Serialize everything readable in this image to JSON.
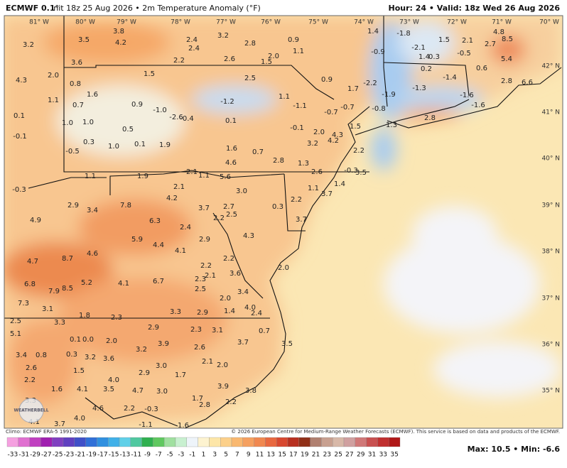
{
  "header": {
    "model": "ECMWF 0.1°",
    "title": "Init 18z 25 Aug 2026 • 2m Temperature Anomaly (°F)",
    "valid": "Hour: 24 • Valid: 18z Wed 26 Aug 2026"
  },
  "map": {
    "lon_labels": [
      "81° W",
      "80° W",
      "79° W",
      "78° W",
      "77° W",
      "76° W",
      "75° W",
      "74° W",
      "73° W",
      "72° W",
      "71° W",
      "70° W"
    ],
    "lat_labels": [
      "42° N",
      "41° N",
      "40° N",
      "39° N",
      "38° N",
      "37° N",
      "36° N",
      "35° N"
    ],
    "values": [
      "3.8",
      "3.5",
      "4.2",
      "3.2",
      "3.6",
      "2.4",
      "2.4",
      "3.2",
      "2.8",
      "0.9",
      "1.4",
      "-1.8",
      "1.5",
      "2.1",
      "2.7",
      "4.8",
      "8.5",
      "1.1",
      "-0.9",
      "-2.1",
      "1.4",
      "0.3",
      "-0.5",
      "5.4",
      "2.0",
      "1.5",
      "2.6",
      "2.2",
      "1.5",
      "2.0",
      "4.3",
      "0.8",
      "2.5",
      "0.9",
      "1.7",
      "-2.2",
      "0.2",
      "-1.4",
      "0.6",
      "1.6",
      "1.1",
      "0.7",
      "0.9",
      "-1.2",
      "1.1",
      "-1.9",
      "-1.3",
      "-1.6",
      "2.8",
      "6.6",
      "-1.1",
      "-0.7",
      "-0.7",
      "-0.8",
      "-1.6",
      "-1.0",
      "-2.6",
      "-0.4",
      "0.1",
      "1.0",
      "1.0",
      "0.1",
      "2.8",
      "1.3",
      "1.5",
      "0.5",
      "-0.1",
      "2.0",
      "4.3",
      "4.2",
      "-0.1",
      "0.3",
      "1.0",
      "0.1",
      "1.9",
      "1.6",
      "0.7",
      "3.2",
      "2.2",
      "-0.5",
      "2.8",
      "4.6",
      "1.3",
      "2.6",
      "-0.3",
      "3.5",
      "1.1",
      "1.9",
      "2.1",
      "1.1",
      "5.6",
      "-0.3",
      "2.1",
      "1.4",
      "1.1",
      "3.7",
      "3.0",
      "4.2",
      "2.2",
      "2.9",
      "3.4",
      "7.8",
      "3.7",
      "2.7",
      "0.3",
      "2.5",
      "2.2",
      "4.9",
      "6.3",
      "2.4",
      "3.7",
      "4.3",
      "5.9",
      "2.9",
      "4.4",
      "4.6",
      "4.1",
      "8.7",
      "4.7",
      "2.2",
      "2.2",
      "3.6",
      "2.1",
      "2.0",
      "6.8",
      "7.9",
      "8.5",
      "5.2",
      "4.1",
      "6.7",
      "2.3",
      "2.5",
      "2.0",
      "3.4",
      "7.3",
      "3.1",
      "1.8",
      "2.3",
      "3.3",
      "2.9",
      "1.4",
      "4.0",
      "2.4",
      "2.5",
      "3.3",
      "2.9",
      "2.3",
      "3.1",
      "0.7",
      "5.1",
      "0.1",
      "0.0",
      "2.0",
      "3.9",
      "3.7",
      "3.5",
      "3.2",
      "2.6",
      "3.4",
      "0.8",
      "0.3",
      "3.2",
      "3.6",
      "2.1",
      "2.0",
      "1.5",
      "3.0",
      "2.9",
      "1.7",
      "4.0",
      "3.9",
      "2.6",
      "2.2",
      "3.5",
      "4.7",
      "3.0",
      "3.8",
      "1.6",
      "4.1",
      "3.3",
      "1.7",
      "2.8",
      "2.2",
      "4.6",
      "2.2",
      "-0.3",
      "4.0",
      "4.1",
      "3.7",
      "-1.1",
      "1.6"
    ],
    "logo": "WEATHERBELL"
  },
  "footer": {
    "climo": "Climo: ECMWF ERA-5 1991-2020",
    "credit": "© 2026 European Centre for Medium-Range Weather Forecasts (ECMWF). This service is based on data and products of the ECMWF.",
    "extremes": "Max: 10.5 • Min: -6.6"
  },
  "colorbar": {
    "labels": [
      -33,
      -31,
      -29,
      -27,
      -25,
      -23,
      -21,
      -19,
      -17,
      -15,
      -13,
      -11,
      -9,
      -7,
      -5,
      -3,
      -1,
      1,
      3,
      5,
      7,
      9,
      11,
      13,
      15,
      17,
      19,
      21,
      23,
      25,
      27,
      29,
      31,
      33,
      35
    ],
    "colors": [
      "#f5a0e0",
      "#e070d0",
      "#c040c0",
      "#a020b0",
      "#8040c0",
      "#6040c0",
      "#4050c8",
      "#3070d8",
      "#3090e0",
      "#40b0e8",
      "#60d0e8",
      "#50c8a0",
      "#30b050",
      "#60c860",
      "#a0e0a0",
      "#c8f0d0",
      "#eef4fa",
      "#fdf3d0",
      "#fde6a8",
      "#fcd08a",
      "#f9b870",
      "#f5a060",
      "#f08850",
      "#e86840",
      "#d84830",
      "#b83020",
      "#903018",
      "#b08070",
      "#c8a090",
      "#d8b8a8",
      "#d0a0a0",
      "#d07878",
      "#c85050",
      "#c03030",
      "#b01818"
    ]
  }
}
